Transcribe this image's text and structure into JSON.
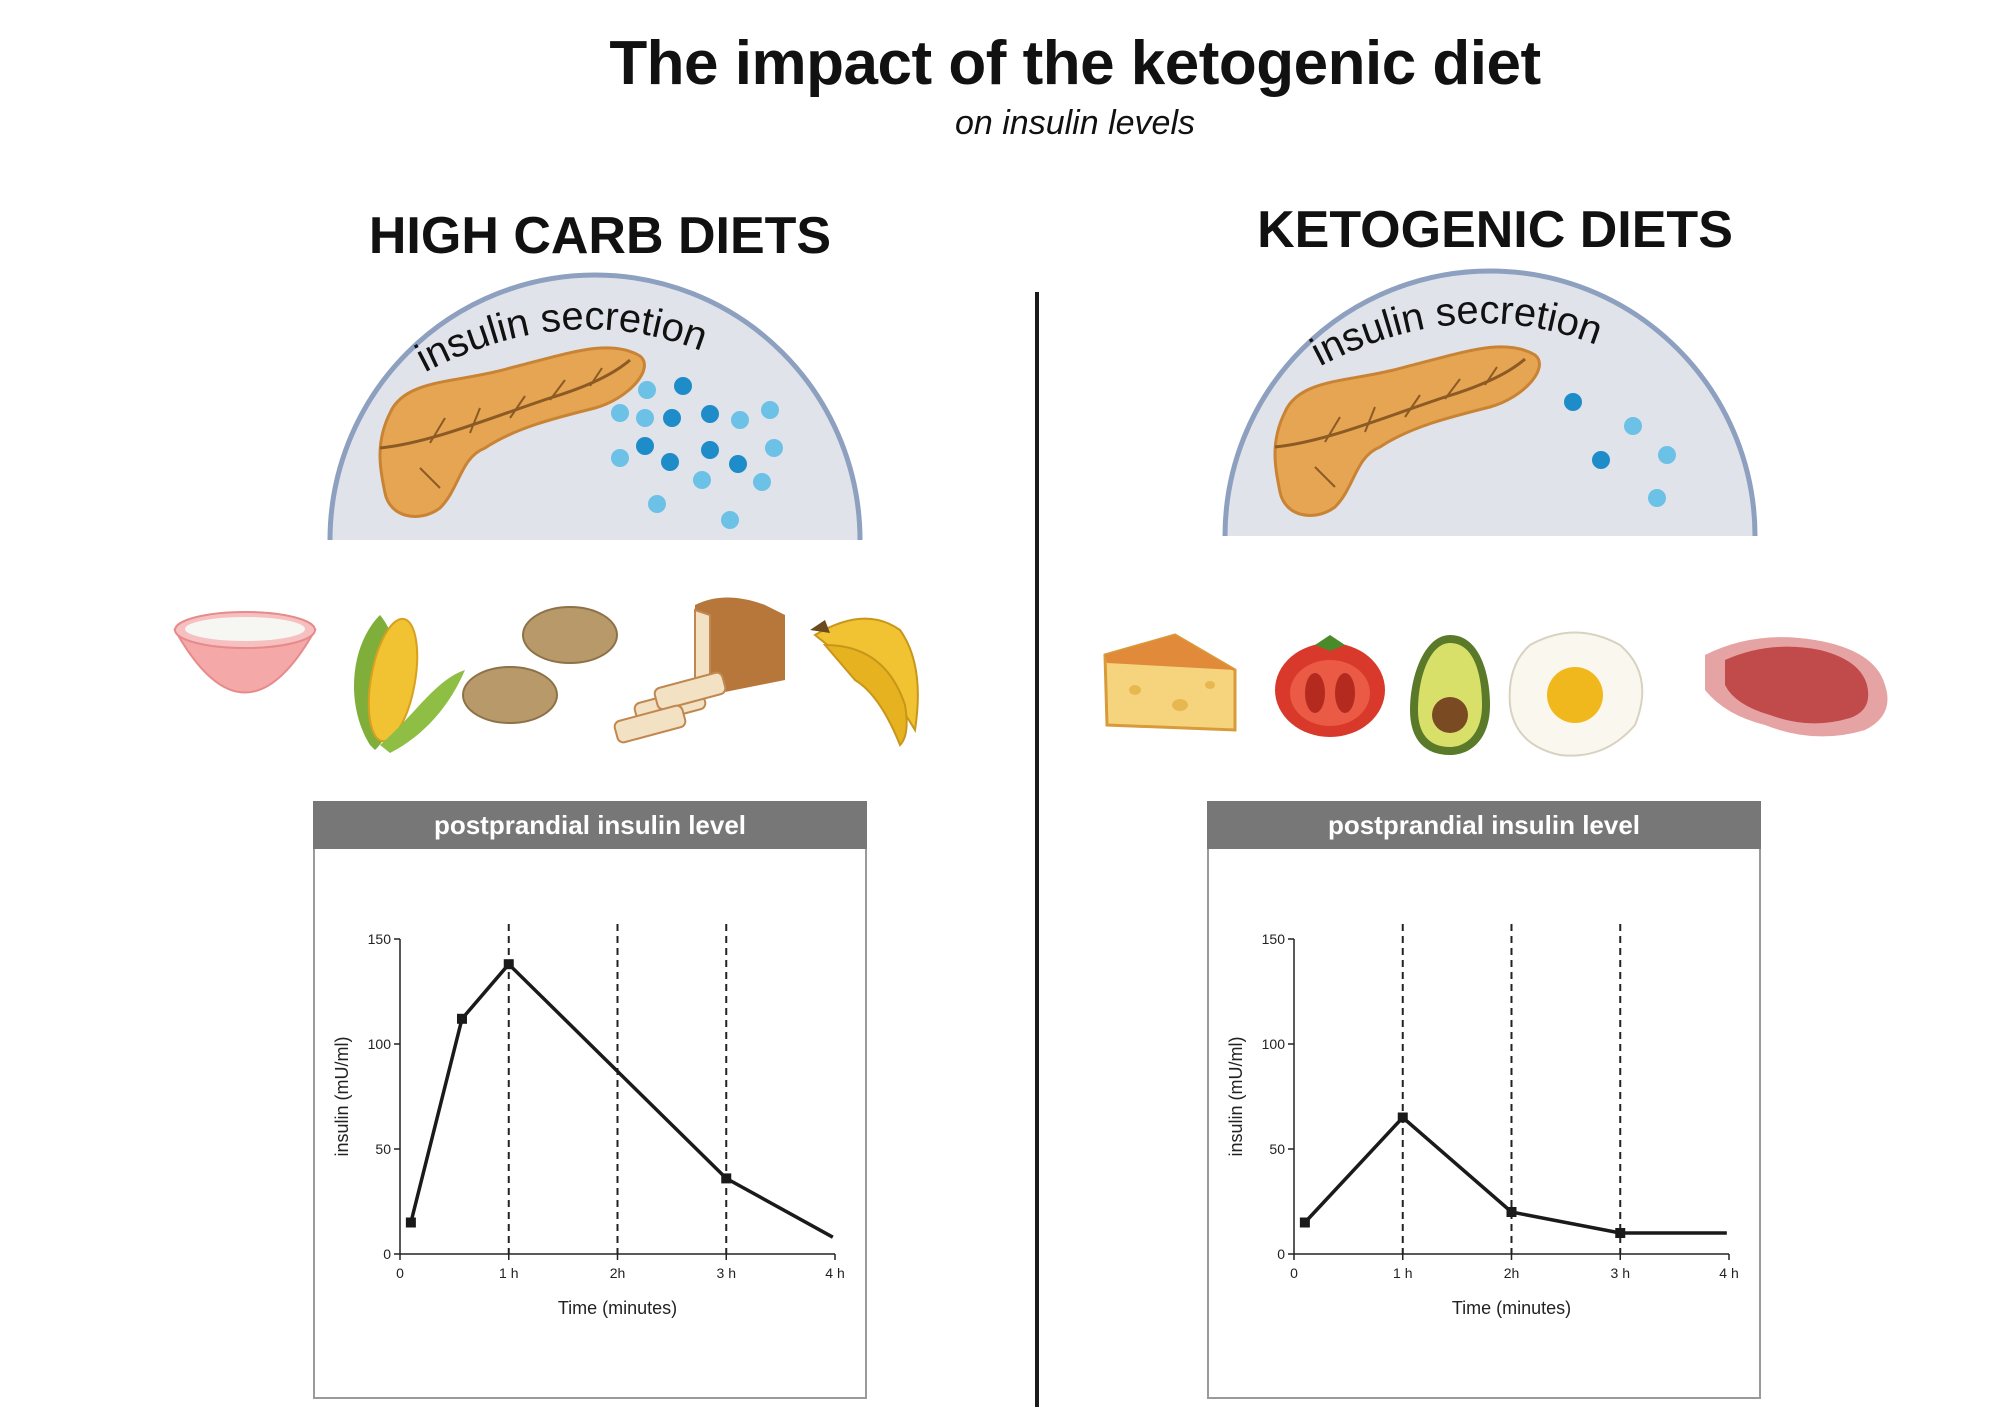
{
  "header": {
    "title": "The impact of the ketogenic diet",
    "subtitle": "on insulin levels"
  },
  "left": {
    "title": "HIGH CARB DIETS",
    "dome_label": "insulin secretion",
    "foods": [
      "rice-bowl-icon",
      "corn-icon",
      "potatoes-icon",
      "bread-icon",
      "bananas-icon"
    ],
    "panel_title": "postprandial insulin level"
  },
  "right": {
    "title": "KETOGENIC DIETS",
    "dome_label": "insulin secretion",
    "foods": [
      "cheese-icon",
      "tomato-icon",
      "avocado-icon",
      "fried-egg-icon",
      "steak-icon"
    ],
    "panel_title": "postprandial insulin level"
  },
  "colors": {
    "dome_fill": "#e1e3ea",
    "dome_stroke": "#8da0bf",
    "pancreas": "#e6a552",
    "insulin_dark": "#1e8cc8",
    "insulin_light": "#6cc1e6",
    "header_bar": "#777777"
  },
  "chart_data": [
    {
      "type": "line",
      "title": "postprandial insulin level",
      "xlabel": "Time (minutes)",
      "ylabel": "insulin (mU/ml)",
      "xlim": [
        0,
        4
      ],
      "ylim": [
        0,
        150
      ],
      "x_ticks": [
        "0",
        "1 h",
        "2h",
        "3 h",
        "4 h"
      ],
      "y_ticks": [
        "0",
        "50",
        "100",
        "150"
      ],
      "vlines": [
        1,
        2,
        3
      ],
      "x": [
        0.1,
        0.57,
        1.0,
        3.0,
        3.98
      ],
      "y": [
        15,
        112,
        138,
        36,
        8
      ],
      "markers": [
        true,
        true,
        true,
        true,
        false
      ]
    },
    {
      "type": "line",
      "title": "postprandial insulin level",
      "xlabel": "Time (minutes)",
      "ylabel": "insulin (mU/ml)",
      "xlim": [
        0,
        4
      ],
      "ylim": [
        0,
        150
      ],
      "x_ticks": [
        "0",
        "1 h",
        "2h",
        "3 h",
        "4 h"
      ],
      "y_ticks": [
        "0",
        "50",
        "100",
        "150"
      ],
      "vlines": [
        1,
        2,
        3
      ],
      "x": [
        0.1,
        1.0,
        2.0,
        3.0,
        3.98
      ],
      "y": [
        15,
        65,
        20,
        10,
        10
      ],
      "markers": [
        true,
        true,
        true,
        true,
        false
      ]
    }
  ]
}
